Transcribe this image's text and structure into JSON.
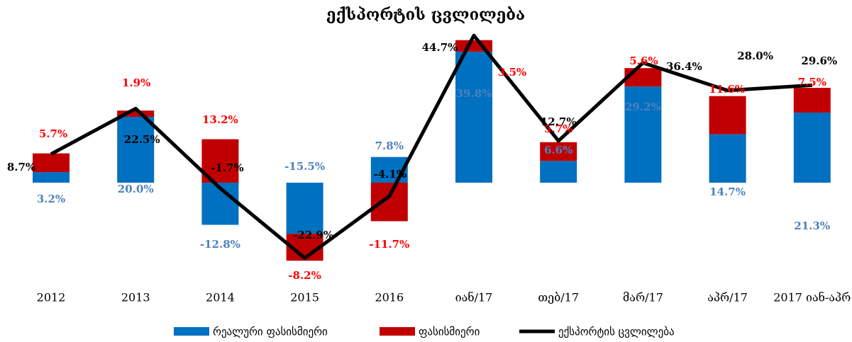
{
  "chart_data": {
    "type": "bar",
    "stacked": true,
    "title": "ექსპორტის ცვლილება",
    "categories": [
      "2012",
      "2013",
      "2014",
      "2015",
      "2016",
      "იან/17",
      "თებ/17",
      "მარ/17",
      "აპრ/17",
      "2017 იან-აპრ"
    ],
    "ylim": [
      -30,
      50
    ],
    "series": [
      {
        "name": "რეალური ფასისმიერი",
        "color": "#0070c0",
        "label_color": "#4f81bd",
        "values": [
          3.2,
          20.0,
          -12.8,
          -15.5,
          7.8,
          39.8,
          6.6,
          29.2,
          14.7,
          21.3
        ],
        "value_labels": [
          "3.2%",
          "20.0%",
          "-12.8%",
          "-15.5%",
          "7.8%",
          "39.8%",
          "6.6%",
          "29.2%",
          "14.7%",
          "21.3%"
        ]
      },
      {
        "name": "ფასისმიერი",
        "color": "#c00000",
        "label_color": "#ff0000",
        "values": [
          5.7,
          1.9,
          13.2,
          -8.2,
          -11.7,
          3.5,
          5.7,
          5.6,
          11.6,
          7.5
        ],
        "value_labels": [
          "5.7%",
          "1.9%",
          "13.2%",
          "-8.2%",
          "-11.7%",
          "3.5%",
          "5.7%",
          "5.6%",
          "11.6%",
          "7.5%"
        ]
      },
      {
        "name": "ექსპორტის ცვლილება",
        "type": "line",
        "color": "#000000",
        "label_color": "#000000",
        "values": [
          8.7,
          22.5,
          -1.7,
          -22.9,
          -4.1,
          44.7,
          12.7,
          36.4,
          28.0,
          29.6
        ],
        "value_labels": [
          "8.7%",
          "22.5%",
          "-1.7%",
          "-22.9%",
          "-4.1%",
          "44.7%",
          "12.7%",
          "36.4%",
          "28.0%",
          "29.6%"
        ]
      }
    ]
  }
}
